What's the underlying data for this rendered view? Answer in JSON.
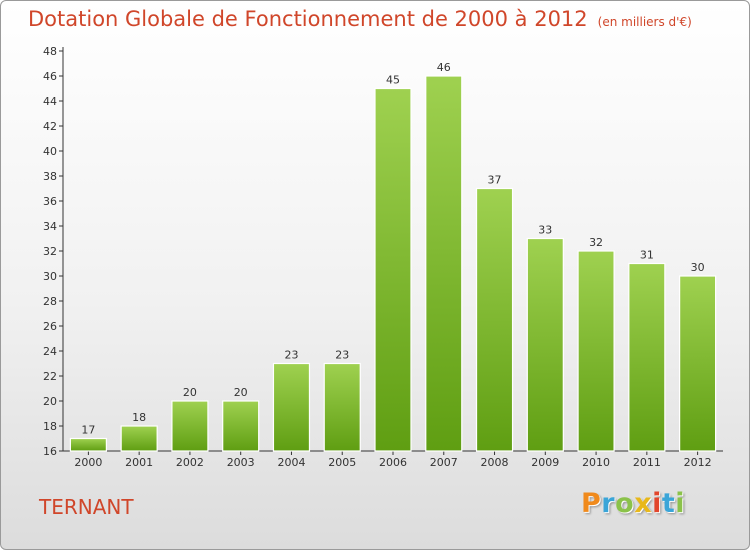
{
  "header": {
    "title": "Dotation Globale de Fonctionnement de 2000 à 2012",
    "unit_note": "(en milliers d'€)"
  },
  "footer": {
    "commune": "TERNANT",
    "logo_text": "Proxiti"
  },
  "colors": {
    "accent": "#d0462a",
    "bar_light": "#9fd150",
    "bar_dark": "#5f9e12"
  },
  "chart_data": {
    "type": "bar",
    "title": "Dotation Globale de Fonctionnement de 2000 à 2012",
    "subtitle": "(en milliers d'€)",
    "xlabel": "",
    "ylabel": "",
    "categories": [
      "2000",
      "2001",
      "2002",
      "2003",
      "2004",
      "2005",
      "2006",
      "2007",
      "2008",
      "2009",
      "2010",
      "2011",
      "2012"
    ],
    "values": [
      17,
      18,
      20,
      20,
      23,
      23,
      45,
      46,
      37,
      33,
      32,
      31,
      30
    ],
    "ylim": [
      16,
      48
    ],
    "yticks": [
      16,
      18,
      20,
      22,
      24,
      26,
      28,
      30,
      32,
      34,
      36,
      38,
      40,
      42,
      44,
      46,
      48
    ],
    "grid": false,
    "legend": "none"
  }
}
